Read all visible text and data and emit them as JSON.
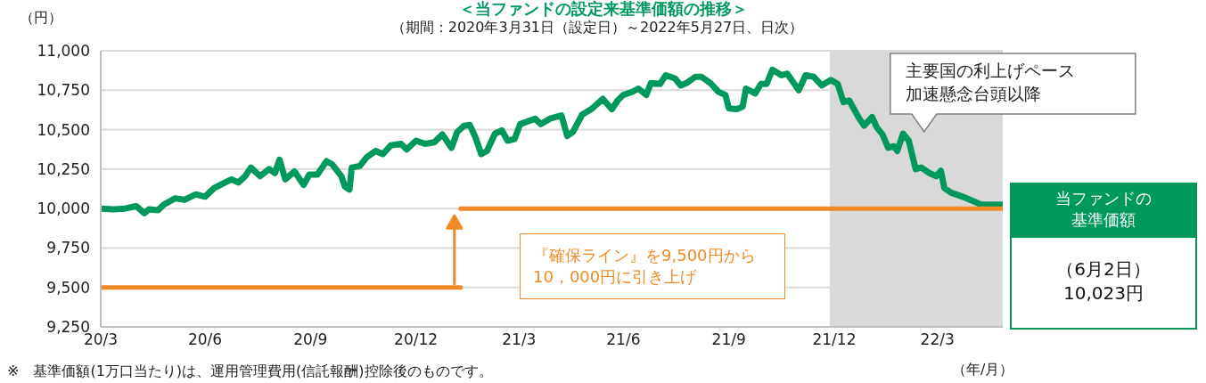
{
  "chart_data": {
    "type": "line",
    "title": "＜当ファンドの設定来基準価額の推移＞",
    "subtitle": "（期間：2020年3月31日（設定日）～2022年5月27日、日次）",
    "ylabel": "（円）",
    "xlabel": "（年/月）",
    "legend": false,
    "grid": "y",
    "marker": "none",
    "line_style": "solid",
    "xlim": [
      "2020-03-31",
      "2022-05-27"
    ],
    "xticks": [
      {
        "value": "2020-03-31",
        "label": "20/3"
      },
      {
        "value": "2020-06-30",
        "label": "20/6"
      },
      {
        "value": "2020-09-30",
        "label": "20/9"
      },
      {
        "value": "2020-12-31",
        "label": "20/12"
      },
      {
        "value": "2021-03-31",
        "label": "21/3"
      },
      {
        "value": "2021-06-30",
        "label": "21/6"
      },
      {
        "value": "2021-09-30",
        "label": "21/9"
      },
      {
        "value": "2021-12-31",
        "label": "21/12"
      },
      {
        "value": "2022-03-31",
        "label": "22/3"
      }
    ],
    "ylim": [
      9250,
      11000
    ],
    "yticks": [
      {
        "value": 9250,
        "label": "9,250"
      },
      {
        "value": 9500,
        "label": "9,500"
      },
      {
        "value": 9750,
        "label": "9,750"
      },
      {
        "value": 10000,
        "label": "10,000"
      },
      {
        "value": 10250,
        "label": "10,250"
      },
      {
        "value": 10500,
        "label": "10,500"
      },
      {
        "value": 10750,
        "label": "10,750"
      },
      {
        "value": 11000,
        "label": "11,000"
      }
    ],
    "series": [
      {
        "type": "line",
        "color": "#00995c",
        "x": [
          "2020-03-31",
          "2020-04-11",
          "2020-04-21",
          "2020-05-01",
          "2020-05-08",
          "2020-05-12",
          "2020-05-20",
          "2020-05-25",
          "2020-06-04",
          "2020-06-12",
          "2020-06-22",
          "2020-06-30",
          "2020-07-08",
          "2020-07-16",
          "2020-07-23",
          "2020-07-29",
          "2020-08-04",
          "2020-08-09",
          "2020-08-17",
          "2020-08-25",
          "2020-08-30",
          "2020-09-03",
          "2020-09-08",
          "2020-09-16",
          "2020-09-24",
          "2020-09-29",
          "2020-10-06",
          "2020-10-14",
          "2020-10-19",
          "2020-10-27",
          "2020-10-30",
          "2020-11-03",
          "2020-11-05",
          "2020-11-12",
          "2020-11-18",
          "2020-11-26",
          "2020-12-02",
          "2020-12-09",
          "2020-12-18",
          "2020-12-23",
          "2020-12-31",
          "2021-01-08",
          "2021-01-16",
          "2021-01-23",
          "2021-01-31",
          "2021-02-05",
          "2021-02-11",
          "2021-02-16",
          "2021-02-21",
          "2021-02-26",
          "2021-03-03",
          "2021-03-10",
          "2021-03-16",
          "2021-03-21",
          "2021-03-27",
          "2021-04-01",
          "2021-04-14",
          "2021-04-19",
          "2021-04-27",
          "2021-05-07",
          "2021-05-12",
          "2021-05-17",
          "2021-05-25",
          "2021-06-02",
          "2021-06-12",
          "2021-06-20",
          "2021-06-25",
          "2021-06-30",
          "2021-07-08",
          "2021-07-13",
          "2021-07-20",
          "2021-07-24",
          "2021-08-01",
          "2021-08-06",
          "2021-08-14",
          "2021-08-19",
          "2021-08-24",
          "2021-09-01",
          "2021-09-06",
          "2021-09-14",
          "2021-09-21",
          "2021-09-27",
          "2021-09-30",
          "2021-10-07",
          "2021-10-12",
          "2021-10-15",
          "2021-10-23",
          "2021-10-28",
          "2021-11-02",
          "2021-11-07",
          "2021-11-15",
          "2021-11-20",
          "2021-11-30",
          "2021-12-06",
          "2021-12-13",
          "2021-12-20",
          "2021-12-28",
          "2022-01-03",
          "2022-01-08",
          "2022-01-13",
          "2022-01-21",
          "2022-01-26",
          "2022-02-02",
          "2022-02-06",
          "2022-02-11",
          "2022-02-16",
          "2022-02-21",
          "2022-02-24",
          "2022-03-01",
          "2022-03-06",
          "2022-03-12",
          "2022-03-17",
          "2022-03-24",
          "2022-03-30",
          "2022-04-03",
          "2022-04-06",
          "2022-04-12",
          "2022-04-22",
          "2022-05-02",
          "2022-05-08",
          "2022-05-27"
        ],
        "values": [
          10000,
          9995,
          10000,
          10015,
          9970,
          9995,
          9990,
          10025,
          10065,
          10055,
          10090,
          10075,
          10130,
          10160,
          10185,
          10165,
          10205,
          10260,
          10205,
          10250,
          10225,
          10310,
          10185,
          10235,
          10150,
          10215,
          10215,
          10300,
          10280,
          10205,
          10140,
          10120,
          10260,
          10270,
          10325,
          10365,
          10345,
          10400,
          10410,
          10375,
          10430,
          10410,
          10420,
          10470,
          10385,
          10485,
          10525,
          10530,
          10450,
          10345,
          10365,
          10475,
          10495,
          10430,
          10440,
          10535,
          10570,
          10535,
          10570,
          10590,
          10460,
          10485,
          10595,
          10630,
          10695,
          10630,
          10685,
          10720,
          10740,
          10760,
          10720,
          10795,
          10790,
          10845,
          10825,
          10780,
          10795,
          10835,
          10835,
          10795,
          10740,
          10720,
          10635,
          10630,
          10645,
          10760,
          10730,
          10790,
          10790,
          10880,
          10845,
          10855,
          10750,
          10845,
          10835,
          10780,
          10815,
          10790,
          10675,
          10685,
          10580,
          10525,
          10580,
          10515,
          10470,
          10385,
          10395,
          10365,
          10475,
          10430,
          10250,
          10260,
          10225,
          10205,
          10240,
          10130,
          10100,
          10075,
          10045,
          10025,
          10025
        ]
      },
      {
        "type": "line",
        "color": "#f08a24",
        "x": [
          "2020-03-31",
          "2021-02-08"
        ],
        "values": [
          9500,
          9500
        ]
      },
      {
        "type": "line",
        "color": "#f08a24",
        "x": [
          "2021-02-08",
          "2022-05-27"
        ],
        "values": [
          10000,
          10000
        ]
      }
    ],
    "bands": [
      {
        "axis": "x",
        "from": "2021-12-27",
        "to": "2022-05-27",
        "label": "主要国の利上げペース加速懸念台頭以降",
        "color": "#d9d9d9"
      }
    ],
    "annotations": [
      "『確保ライン』を9,500円から\n10，000円に引き上げ",
      "当ファンドの基準価額",
      "（6月2日）\n10,023円",
      "※　基準価額(1万口当たり)は、運用管理費用(信託報酬)控除後のものです。"
    ]
  }
}
